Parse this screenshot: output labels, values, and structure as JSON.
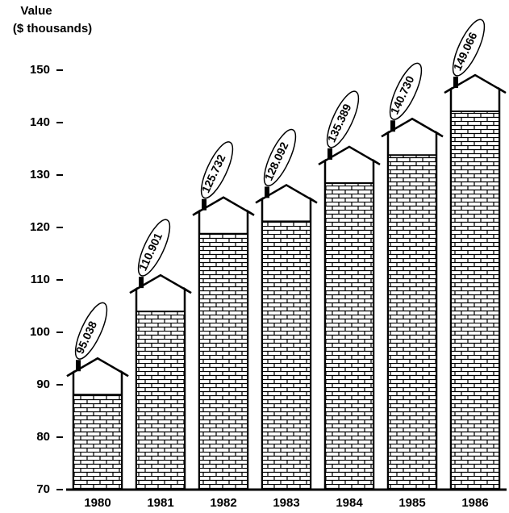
{
  "chart_data": {
    "type": "house-bar",
    "ylabel": [
      "Value",
      "($ thousands)"
    ],
    "categories": [
      "1980",
      "1981",
      "1982",
      "1983",
      "1984",
      "1985",
      "1986"
    ],
    "values": [
      95.038,
      110.901,
      125.732,
      128.092,
      135.389,
      140.73,
      149.066
    ],
    "value_labels": [
      "95.038",
      "110.901",
      "125.732",
      "128.092",
      "135.389",
      "140.730",
      "149.066"
    ],
    "color": "#000000",
    "ylim": [
      70,
      150
    ],
    "yticks": [
      70,
      80,
      90,
      100,
      110,
      120,
      130,
      140,
      150
    ]
  }
}
